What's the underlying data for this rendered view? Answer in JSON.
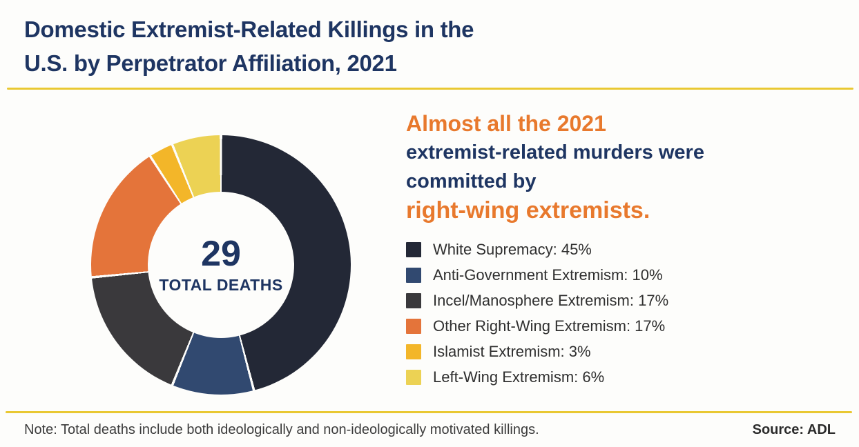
{
  "colors": {
    "navy": "#1e3562",
    "orange": "#e8792d",
    "divider-yellow": "#e9c832"
  },
  "header": {
    "title_line1": "Domestic Extremist-Related Killings in the",
    "title_line2": "U.S. by Perpetrator Affiliation, 2021"
  },
  "headline": {
    "line1": "Almost all the 2021",
    "line2": "extremist-related murders were",
    "line3": "committed by",
    "line4": "right-wing extremists."
  },
  "footer": {
    "note": "Note: Total deaths include both ideologically and non-ideologically motivated killings.",
    "source": "Source: ADL"
  },
  "chart_data": {
    "type": "pie",
    "subtype": "donut",
    "title": "Domestic Extremist-Related Killings in the U.S. by Perpetrator Affiliation, 2021",
    "center": {
      "value": 29,
      "label": "TOTAL DEATHS"
    },
    "unit": "%",
    "start_angle_deg": 0,
    "direction": "clockwise",
    "legend_position": "right",
    "items": [
      {
        "label": "White Supremacy",
        "value": 45,
        "color": "#232836"
      },
      {
        "label": "Anti-Government Extremism",
        "value": 10,
        "color": "#314970"
      },
      {
        "label": "Incel/Manosphere Extremism",
        "value": 17,
        "color": "#3a393c"
      },
      {
        "label": "Other Right-Wing Extremism",
        "value": 17,
        "color": "#e4743a"
      },
      {
        "label": "Islamist Extremism",
        "value": 3,
        "color": "#f3b629"
      },
      {
        "label": "Left-Wing Extremism",
        "value": 6,
        "color": "#ecd254"
      }
    ]
  }
}
